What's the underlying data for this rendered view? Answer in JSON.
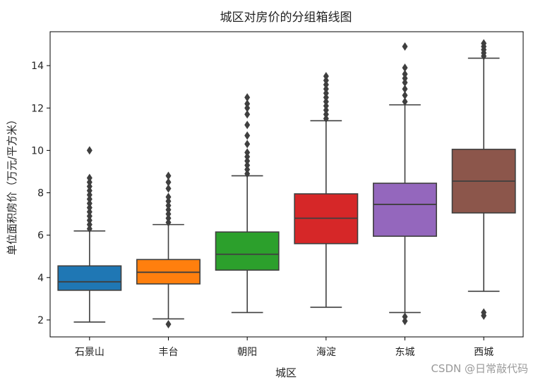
{
  "chart_data": {
    "type": "box",
    "title": "城区对房价的分组箱线图",
    "xlabel": "城区",
    "ylabel": "单位面积房价（万元/平方米）",
    "ylim": [
      1.2,
      15.6
    ],
    "yticks": [
      2,
      4,
      6,
      8,
      10,
      12,
      14
    ],
    "grid": false,
    "categories": [
      "石景山",
      "丰台",
      "朝阳",
      "海淀",
      "东城",
      "西城"
    ],
    "boxes": [
      {
        "category": "石景山",
        "color": "#1f77b4",
        "whisker_low": 1.9,
        "q1": 3.4,
        "median": 3.8,
        "q3": 4.55,
        "whisker_high": 6.2,
        "outliers": [
          6.3,
          6.5,
          6.7,
          6.9,
          7.1,
          7.3,
          7.5,
          7.7,
          7.9,
          8.1,
          8.3,
          8.5,
          8.7,
          10.0
        ]
      },
      {
        "category": "丰台",
        "color": "#ff7f0e",
        "whisker_low": 2.05,
        "q1": 3.7,
        "median": 4.25,
        "q3": 4.85,
        "whisker_high": 6.5,
        "outliers": [
          1.8,
          6.6,
          6.8,
          7.0,
          7.2,
          7.4,
          7.6,
          7.8,
          8.2,
          8.5,
          8.8
        ]
      },
      {
        "category": "朝阳",
        "color": "#2ca02c",
        "whisker_low": 2.35,
        "q1": 4.35,
        "median": 5.1,
        "q3": 6.15,
        "whisker_high": 8.8,
        "outliers": [
          8.9,
          9.1,
          9.3,
          9.5,
          9.7,
          9.9,
          10.3,
          10.7,
          11.2,
          11.7,
          12.0,
          12.2,
          12.5
        ]
      },
      {
        "category": "海淀",
        "color": "#d62728",
        "whisker_low": 2.6,
        "q1": 5.6,
        "median": 6.8,
        "q3": 7.95,
        "whisker_high": 11.4,
        "outliers": [
          11.5,
          11.7,
          11.9,
          12.1,
          12.3,
          12.5,
          12.7,
          12.9,
          13.1,
          13.3,
          13.5
        ]
      },
      {
        "category": "东城",
        "color": "#9467bd",
        "whisker_low": 2.35,
        "q1": 5.95,
        "median": 7.45,
        "q3": 8.45,
        "whisker_high": 12.15,
        "outliers": [
          1.95,
          2.15,
          12.3,
          12.6,
          12.9,
          13.2,
          13.4,
          13.6,
          13.9,
          14.9
        ]
      },
      {
        "category": "西城",
        "color": "#8c564b",
        "whisker_low": 3.35,
        "q1": 7.05,
        "median": 8.55,
        "q3": 10.05,
        "whisker_high": 14.35,
        "outliers": [
          2.2,
          2.35,
          14.45,
          14.6,
          14.75,
          14.9,
          15.05
        ]
      }
    ]
  },
  "watermark": "CSDN @日常敲代码"
}
